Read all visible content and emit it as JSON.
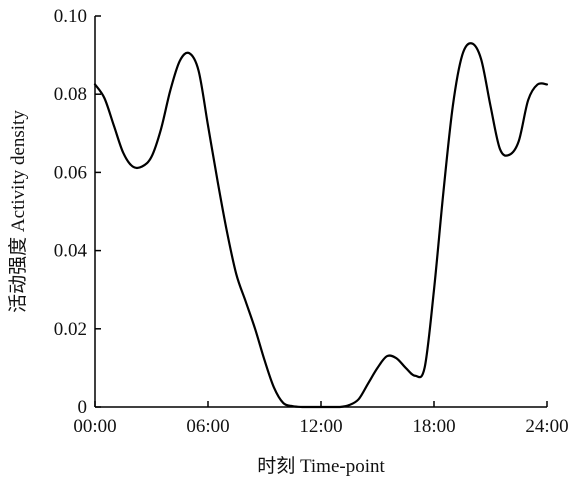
{
  "chart_data": {
    "type": "line",
    "title": "",
    "xlabel": "时刻 Time-point",
    "ylabel": "活动强度 Activity density",
    "x_ticks": [
      "00:00",
      "06:00",
      "12:00",
      "18:00",
      "24:00"
    ],
    "y_ticks": [
      "0",
      "0.02",
      "0.04",
      "0.06",
      "0.08",
      "0.10"
    ],
    "xlim": [
      0,
      24
    ],
    "ylim": [
      0,
      0.1
    ],
    "grid": false,
    "series": [
      {
        "x": [
          0,
          0.5,
          1,
          1.5,
          2,
          2.5,
          3,
          3.5,
          4,
          4.5,
          5,
          5.5,
          6,
          6.5,
          7,
          7.5,
          8,
          8.5,
          9,
          9.5,
          10,
          10.5,
          11,
          11.5,
          12,
          12.5,
          13,
          13.5,
          14,
          14.5,
          15,
          15.5,
          16,
          16.5,
          17,
          17.5,
          18,
          18.5,
          19,
          19.5,
          20,
          20.5,
          21,
          21.5,
          22,
          22.5,
          23,
          23.5,
          24
        ],
        "values": [
          0.0825,
          0.079,
          0.072,
          0.065,
          0.0615,
          0.0615,
          0.064,
          0.071,
          0.081,
          0.0885,
          0.0905,
          0.086,
          0.072,
          0.058,
          0.045,
          0.034,
          0.027,
          0.02,
          0.012,
          0.005,
          0.001,
          0.0002,
          0.0,
          0.0,
          0.0,
          0.0,
          0.0,
          0.0005,
          0.002,
          0.006,
          0.01,
          0.013,
          0.0125,
          0.01,
          0.008,
          0.01,
          0.03,
          0.055,
          0.077,
          0.09,
          0.093,
          0.089,
          0.077,
          0.066,
          0.0645,
          0.068,
          0.0785,
          0.0825,
          0.0825
        ]
      }
    ]
  }
}
